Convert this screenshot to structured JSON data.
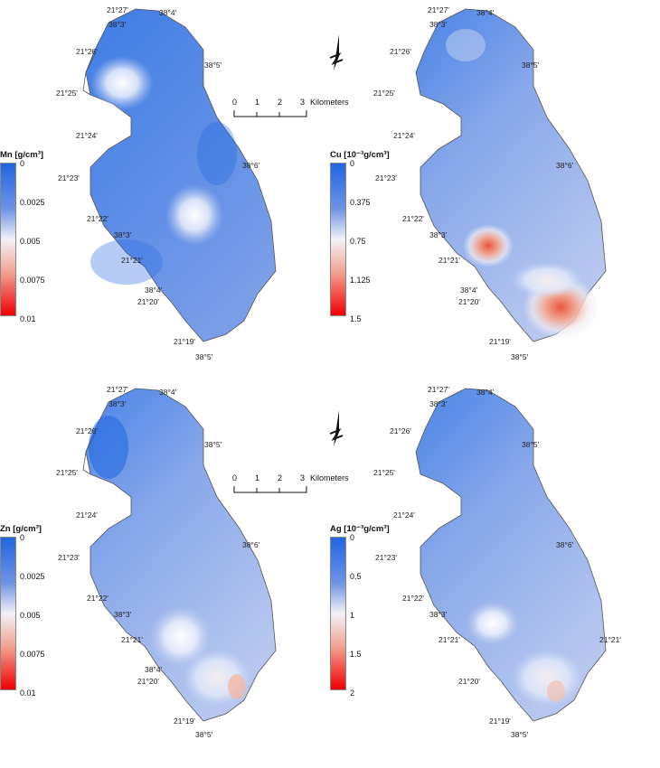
{
  "colors": {
    "low": "#1f66e0",
    "mid": "#f2f2f7",
    "high": "#f00000",
    "outline": "#555555"
  },
  "maps": [
    {
      "id": "mn",
      "legend": {
        "title": "Mn [g/cm³]",
        "ticks": [
          "0",
          "0.0025",
          "0.005",
          "0.0075",
          "0.01"
        ]
      },
      "coords": [
        "21°27'",
        "38°4'",
        "38°3'",
        "21°26'",
        "38°5'",
        "21°25'",
        "21°24'",
        "38°6'",
        "21°23'",
        "21°22'",
        "38°3'",
        "21°21'",
        "38°4'",
        "21°20'",
        "21°19'",
        "38°5'"
      ],
      "hotspots": [
        {
          "label": "light",
          "level": 0.6
        },
        {
          "label": "light",
          "level": 0.5
        }
      ]
    },
    {
      "id": "cu",
      "legend": {
        "title": "Cu [10⁻³g/cm³]",
        "ticks": [
          "0",
          "0.375",
          "0.75",
          "1.125",
          "1.5"
        ]
      },
      "coords": [
        "21°27'",
        "38°4'",
        "38°3'",
        "21°26'",
        "38°5'",
        "21°25'",
        "21°24'",
        "38°6'",
        "21°23'",
        "21°22'",
        "38°3'",
        "21°21'",
        "38°4'",
        "21°20'",
        "21°19'",
        "38°5'"
      ],
      "hotspots": [
        {
          "label": "red",
          "level": 0.8
        },
        {
          "label": "red",
          "level": 0.9
        }
      ]
    },
    {
      "id": "zn",
      "legend": {
        "title": "Zn [g/cm³]",
        "ticks": [
          "0",
          "0.0025",
          "0.005",
          "0.0075",
          "0.01"
        ]
      },
      "coords": [
        "21°27'",
        "38°4'",
        "38°3'",
        "21°26'",
        "38°5'",
        "21°25'",
        "21°24'",
        "38°6'",
        "21°23'",
        "21°22'",
        "38°3'",
        "21°21'",
        "38°4'",
        "21°20'",
        "21°19'",
        "38°5'"
      ],
      "hotspots": [
        {
          "label": "light",
          "level": 0.55
        },
        {
          "label": "light",
          "level": 0.6
        }
      ]
    },
    {
      "id": "ag",
      "legend": {
        "title": "Ag [10⁻³g/cm³]",
        "ticks": [
          "0",
          "0.5",
          "1",
          "1.5",
          "2"
        ]
      },
      "coords": [
        "21°27'",
        "38°4'",
        "38°3'",
        "21°26'",
        "38°5'",
        "21°25'",
        "21°24'",
        "38°6'",
        "21°23'",
        "21°22'",
        "38°3'",
        "21°21'",
        "21°21'",
        "21°20'",
        "21°19'",
        "38°5'"
      ],
      "hotspots": [
        {
          "label": "light",
          "level": 0.45
        },
        {
          "label": "light",
          "level": 0.6
        }
      ]
    }
  ],
  "scalebars": [
    {
      "ticks": [
        "0",
        "1",
        "2",
        "3"
      ],
      "unit": "Kilometers"
    },
    {
      "ticks": [
        "0",
        "1",
        "2",
        "3"
      ],
      "unit": "Kilometers"
    }
  ],
  "north": {
    "letter": "N"
  }
}
